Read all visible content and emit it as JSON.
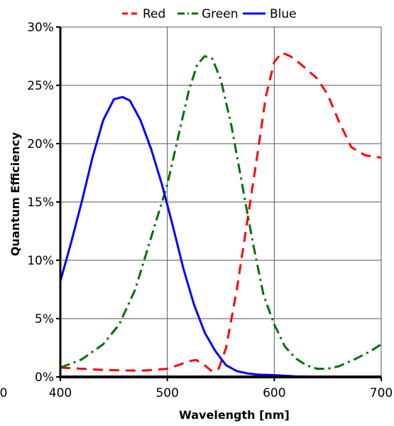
{
  "chart_data": {
    "type": "line",
    "title": "",
    "xlabel": "Wavelength [nm]",
    "ylabel": "Quantum Efficiency",
    "xlim": [
      400,
      700
    ],
    "ylim": [
      0,
      30
    ],
    "x_ticks": [
      400,
      500,
      600,
      700
    ],
    "x_tick_labels": [
      "400",
      "500",
      "600",
      "700"
    ],
    "y_ticks": [
      0,
      5,
      10,
      15,
      20,
      25,
      30
    ],
    "y_tick_labels": [
      "0%",
      "5%",
      "10%",
      "15%",
      "20%",
      "25%",
      "30%"
    ],
    "stray_tick_label": "0",
    "grid": true,
    "legend_position": "top",
    "series": [
      {
        "name": "Red",
        "color": "#ff0000",
        "style": "dashed",
        "points": [
          [
            400,
            0.8
          ],
          [
            420,
            0.7
          ],
          [
            440,
            0.6
          ],
          [
            460,
            0.55
          ],
          [
            480,
            0.55
          ],
          [
            500,
            0.7
          ],
          [
            510,
            1.0
          ],
          [
            520,
            1.35
          ],
          [
            527,
            1.45
          ],
          [
            535,
            1.0
          ],
          [
            542,
            0.45
          ],
          [
            548,
            0.7
          ],
          [
            555,
            2.5
          ],
          [
            565,
            7.5
          ],
          [
            575,
            13.5
          ],
          [
            585,
            19.5
          ],
          [
            592,
            24.0
          ],
          [
            600,
            27.0
          ],
          [
            607,
            27.8
          ],
          [
            615,
            27.5
          ],
          [
            625,
            26.8
          ],
          [
            640,
            25.6
          ],
          [
            650,
            24.2
          ],
          [
            660,
            22.0
          ],
          [
            672,
            19.7
          ],
          [
            685,
            19.0
          ],
          [
            700,
            18.8
          ]
        ]
      },
      {
        "name": "Green",
        "color": "#007000",
        "style": "dashdot",
        "points": [
          [
            400,
            0.8
          ],
          [
            420,
            1.5
          ],
          [
            440,
            2.8
          ],
          [
            455,
            4.5
          ],
          [
            470,
            7.5
          ],
          [
            485,
            12.0
          ],
          [
            500,
            16.5
          ],
          [
            510,
            20.5
          ],
          [
            520,
            24.5
          ],
          [
            528,
            26.8
          ],
          [
            535,
            27.5
          ],
          [
            542,
            27.3
          ],
          [
            550,
            25.5
          ],
          [
            560,
            21.5
          ],
          [
            570,
            16.5
          ],
          [
            580,
            11.5
          ],
          [
            590,
            7.0
          ],
          [
            600,
            4.5
          ],
          [
            610,
            2.6
          ],
          [
            620,
            1.6
          ],
          [
            630,
            1.0
          ],
          [
            640,
            0.7
          ],
          [
            650,
            0.7
          ],
          [
            660,
            0.9
          ],
          [
            675,
            1.5
          ],
          [
            690,
            2.2
          ],
          [
            700,
            2.8
          ]
        ]
      },
      {
        "name": "Blue",
        "color": "#0000ff",
        "style": "solid",
        "points": [
          [
            400,
            8.2
          ],
          [
            410,
            11.5
          ],
          [
            420,
            15.0
          ],
          [
            430,
            18.8
          ],
          [
            440,
            22.0
          ],
          [
            450,
            23.8
          ],
          [
            458,
            24.0
          ],
          [
            465,
            23.7
          ],
          [
            475,
            22.0
          ],
          [
            485,
            19.5
          ],
          [
            495,
            16.5
          ],
          [
            505,
            13.0
          ],
          [
            515,
            9.3
          ],
          [
            525,
            6.2
          ],
          [
            535,
            3.8
          ],
          [
            545,
            2.2
          ],
          [
            555,
            1.0
          ],
          [
            565,
            0.5
          ],
          [
            575,
            0.3
          ],
          [
            585,
            0.2
          ],
          [
            600,
            0.15
          ],
          [
            620,
            0.05
          ],
          [
            650,
            0.02
          ],
          [
            700,
            0.0
          ]
        ]
      }
    ]
  }
}
